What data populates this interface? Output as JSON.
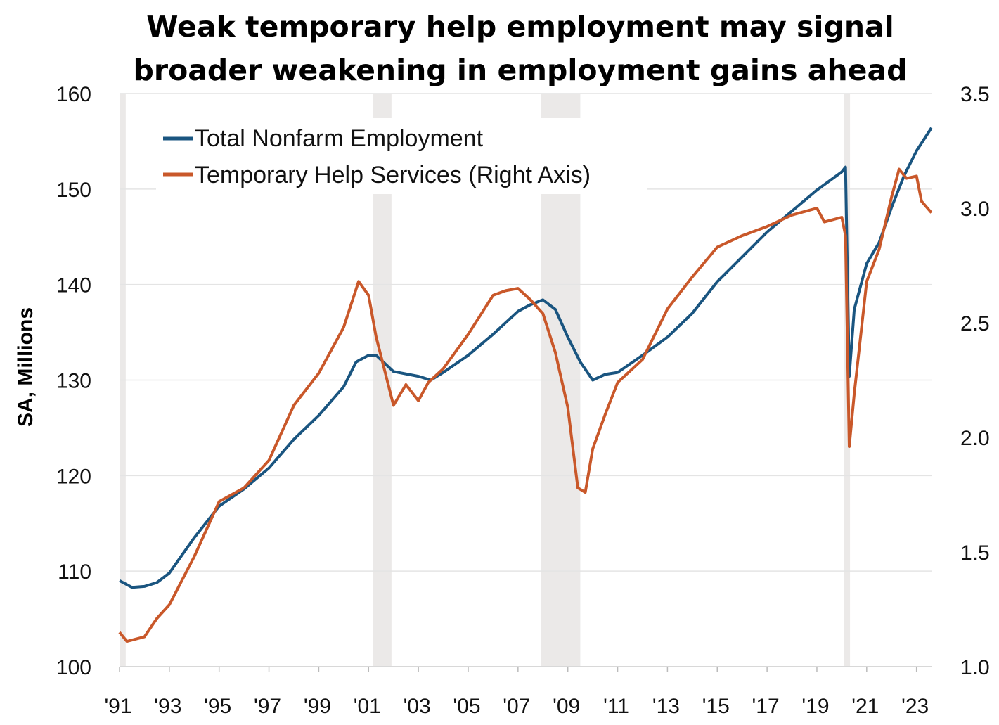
{
  "chart_data": {
    "type": "line",
    "title": [
      "Weak temporary help employment may signal",
      "broader weakening in employment gains ahead"
    ],
    "ylabel": "SA, Millions",
    "xlabel": "",
    "xlim": [
      1991.0,
      2023.63
    ],
    "ylim": [
      100,
      160
    ],
    "y2lim": [
      1.0,
      3.5
    ],
    "grid": true,
    "legend_position": "top-left",
    "x_ticks": [
      1991,
      1993,
      1995,
      1997,
      1999,
      2001,
      2003,
      2005,
      2007,
      2009,
      2011,
      2013,
      2015,
      2017,
      2019,
      2021,
      2023
    ],
    "x_tick_labels": [
      "'91",
      "'93",
      "'95",
      "'97",
      "'99",
      "'01",
      "'03",
      "'05",
      "'07",
      "'09",
      "'11",
      "'13",
      "'15",
      "'17",
      "'19",
      "'21",
      "'23"
    ],
    "y_ticks": [
      100,
      110,
      120,
      130,
      140,
      150,
      160
    ],
    "y_tick_labels": [
      "100",
      "110",
      "120",
      "130",
      "140",
      "150",
      "160"
    ],
    "y2_ticks": [
      1.0,
      1.5,
      2.0,
      2.5,
      3.0,
      3.5
    ],
    "y2_tick_labels": [
      "1.0",
      "1.5",
      "2.0",
      "2.5",
      "3.0",
      "3.5"
    ],
    "recessions": [
      [
        1990.9,
        1991.25
      ],
      [
        2001.17,
        2001.92
      ],
      [
        2007.92,
        2009.5
      ],
      [
        2020.08,
        2020.33
      ]
    ],
    "colors": {
      "nonfarm": "#1a5580",
      "temp": "#c9582a",
      "recession": "#ebe9e8",
      "grid": "#e4e4e4"
    },
    "series": [
      {
        "name": "Total Nonfarm Employment",
        "axis": "left",
        "color_key": "nonfarm",
        "x": [
          1991.0,
          1991.5,
          1992.0,
          1992.5,
          1993.0,
          1994.0,
          1995.0,
          1996.0,
          1997.0,
          1998.0,
          1999.0,
          2000.0,
          2000.5,
          2001.0,
          2001.3,
          2002.0,
          2003.0,
          2003.5,
          2004.0,
          2005.0,
          2006.0,
          2007.0,
          2007.5,
          2008.0,
          2008.5,
          2009.0,
          2009.5,
          2010.0,
          2010.5,
          2011.0,
          2012.0,
          2013.0,
          2014.0,
          2015.0,
          2016.0,
          2017.0,
          2018.0,
          2019.0,
          2020.0,
          2020.15,
          2020.3,
          2020.5,
          2021.0,
          2021.5,
          2022.0,
          2022.5,
          2023.0,
          2023.6
        ],
        "values": [
          109.0,
          108.3,
          108.4,
          108.8,
          109.8,
          113.5,
          116.8,
          118.6,
          120.8,
          123.8,
          126.3,
          129.3,
          131.9,
          132.6,
          132.6,
          130.9,
          130.4,
          130.0,
          130.8,
          132.6,
          134.8,
          137.2,
          137.9,
          138.4,
          137.4,
          134.5,
          131.9,
          130.0,
          130.6,
          130.8,
          132.6,
          134.5,
          137.0,
          140.3,
          142.9,
          145.5,
          147.7,
          149.9,
          151.8,
          152.3,
          130.4,
          137.4,
          142.2,
          144.4,
          148.1,
          151.4,
          154.0,
          156.4
        ]
      },
      {
        "name": "Temporary Help Services (Right Axis)",
        "axis": "right",
        "color_key": "temp",
        "x": [
          1991.0,
          1991.3,
          1992.0,
          1992.5,
          1993.0,
          1994.0,
          1995.0,
          1995.5,
          1996.0,
          1997.0,
          1998.0,
          1999.0,
          2000.0,
          2000.6,
          2001.0,
          2001.3,
          2002.0,
          2002.5,
          2003.0,
          2003.4,
          2004.0,
          2005.0,
          2006.0,
          2006.5,
          2007.0,
          2007.5,
          2008.0,
          2008.5,
          2009.0,
          2009.4,
          2009.7,
          2010.0,
          2010.5,
          2011.0,
          2012.0,
          2013.0,
          2014.0,
          2015.0,
          2016.0,
          2017.0,
          2018.0,
          2019.0,
          2019.3,
          2020.0,
          2020.15,
          2020.3,
          2020.5,
          2021.0,
          2021.5,
          2022.0,
          2022.3,
          2022.6,
          2023.0,
          2023.2,
          2023.6
        ],
        "values": [
          1.15,
          1.11,
          1.13,
          1.21,
          1.27,
          1.48,
          1.72,
          1.75,
          1.78,
          1.9,
          2.14,
          2.28,
          2.48,
          2.68,
          2.62,
          2.44,
          2.14,
          2.23,
          2.16,
          2.24,
          2.3,
          2.45,
          2.62,
          2.64,
          2.65,
          2.6,
          2.54,
          2.37,
          2.13,
          1.78,
          1.76,
          1.95,
          2.1,
          2.24,
          2.34,
          2.56,
          2.7,
          2.83,
          2.88,
          2.92,
          2.97,
          3.0,
          2.94,
          2.96,
          2.88,
          1.96,
          2.19,
          2.68,
          2.82,
          3.05,
          3.17,
          3.13,
          3.14,
          3.03,
          2.98
        ]
      }
    ]
  }
}
